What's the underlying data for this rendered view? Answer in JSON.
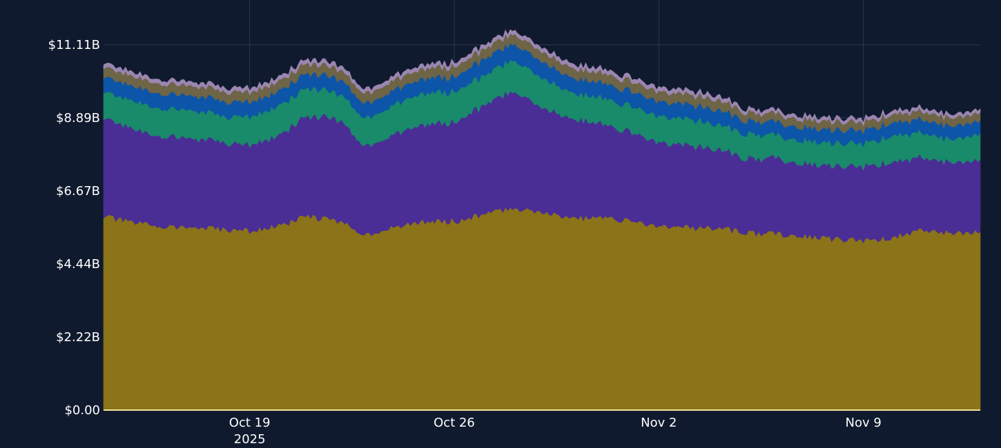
{
  "chart_data": {
    "type": "area",
    "stacked": true,
    "title": "",
    "xlabel": "",
    "ylabel": "",
    "x_range": [
      "2025-10-14",
      "2025-11-13"
    ],
    "ylim": [
      0,
      11.11
    ],
    "y_ticks": [
      {
        "value": 0,
        "label": "$0.00"
      },
      {
        "value": 2.22,
        "label": "$2.22B"
      },
      {
        "value": 4.44,
        "label": "$4.44B"
      },
      {
        "value": 6.67,
        "label": "$6.67B"
      },
      {
        "value": 8.89,
        "label": "$8.89B"
      },
      {
        "value": 11.11,
        "label": "$11.11B"
      }
    ],
    "x_ticks": [
      {
        "value": "2025-10-19",
        "label": "Oct 19",
        "sublabel": "2025"
      },
      {
        "value": "2025-10-26",
        "label": "Oct 26",
        "sublabel": ""
      },
      {
        "value": "2025-11-02",
        "label": "Nov 2",
        "sublabel": ""
      },
      {
        "value": "2025-11-09",
        "label": "Nov 9",
        "sublabel": ""
      }
    ],
    "grid": true,
    "legend": "none",
    "colors": {
      "background": "#101a2e",
      "grid": "#2c3852",
      "axis_line": "#f2e29a",
      "tick_text": "#ffffff"
    },
    "x": [
      "2025-10-14",
      "2025-10-15",
      "2025-10-16",
      "2025-10-17",
      "2025-10-18",
      "2025-10-19",
      "2025-10-20",
      "2025-10-21",
      "2025-10-22",
      "2025-10-23",
      "2025-10-24",
      "2025-10-25",
      "2025-10-26",
      "2025-10-27",
      "2025-10-28",
      "2025-10-29",
      "2025-10-30",
      "2025-10-31",
      "2025-11-01",
      "2025-11-02",
      "2025-11-03",
      "2025-11-04",
      "2025-11-05",
      "2025-11-06",
      "2025-11-07",
      "2025-11-08",
      "2025-11-09",
      "2025-11-10",
      "2025-11-11",
      "2025-11-12",
      "2025-11-13"
    ],
    "series": [
      {
        "color": "#8a7318",
        "values": [
          5.9,
          5.7,
          5.6,
          5.55,
          5.5,
          5.45,
          5.6,
          5.9,
          5.75,
          5.35,
          5.55,
          5.75,
          5.75,
          5.95,
          6.15,
          6.05,
          5.85,
          5.85,
          5.75,
          5.6,
          5.55,
          5.55,
          5.4,
          5.35,
          5.3,
          5.2,
          5.15,
          5.25,
          5.5,
          5.4,
          5.4
        ]
      },
      {
        "color": "#4b2d96",
        "values": [
          3.0,
          2.8,
          2.75,
          2.7,
          2.65,
          2.6,
          2.75,
          3.05,
          3.1,
          2.7,
          2.85,
          2.95,
          3.05,
          3.3,
          3.55,
          3.2,
          3.0,
          2.85,
          2.7,
          2.55,
          2.5,
          2.4,
          2.25,
          2.3,
          2.2,
          2.2,
          2.25,
          2.3,
          2.2,
          2.15,
          2.2
        ]
      },
      {
        "color": "#198a6a",
        "values": [
          0.8,
          0.85,
          0.85,
          0.85,
          0.8,
          0.85,
          0.9,
          0.85,
          0.8,
          0.85,
          0.9,
          0.95,
          0.95,
          0.9,
          0.95,
          0.9,
          0.8,
          0.8,
          0.8,
          0.8,
          0.8,
          0.75,
          0.75,
          0.7,
          0.7,
          0.7,
          0.7,
          0.8,
          0.75,
          0.7,
          0.8
        ]
      },
      {
        "color": "#0d55a8",
        "values": [
          0.45,
          0.45,
          0.45,
          0.45,
          0.45,
          0.45,
          0.45,
          0.45,
          0.45,
          0.45,
          0.45,
          0.45,
          0.45,
          0.5,
          0.5,
          0.5,
          0.45,
          0.45,
          0.45,
          0.45,
          0.45,
          0.45,
          0.4,
          0.4,
          0.4,
          0.4,
          0.4,
          0.4,
          0.4,
          0.4,
          0.4
        ]
      },
      {
        "color": "#6e6446",
        "values": [
          0.3,
          0.3,
          0.3,
          0.3,
          0.3,
          0.3,
          0.3,
          0.3,
          0.3,
          0.3,
          0.3,
          0.3,
          0.3,
          0.3,
          0.3,
          0.3,
          0.3,
          0.3,
          0.3,
          0.3,
          0.3,
          0.3,
          0.25,
          0.25,
          0.25,
          0.25,
          0.25,
          0.25,
          0.25,
          0.25,
          0.25
        ]
      },
      {
        "color": "#9a86b0",
        "values": [
          0.12,
          0.12,
          0.12,
          0.12,
          0.12,
          0.12,
          0.12,
          0.12,
          0.12,
          0.12,
          0.12,
          0.12,
          0.12,
          0.12,
          0.12,
          0.12,
          0.12,
          0.12,
          0.12,
          0.12,
          0.12,
          0.12,
          0.1,
          0.1,
          0.1,
          0.1,
          0.1,
          0.1,
          0.1,
          0.1,
          0.1
        ]
      }
    ]
  }
}
